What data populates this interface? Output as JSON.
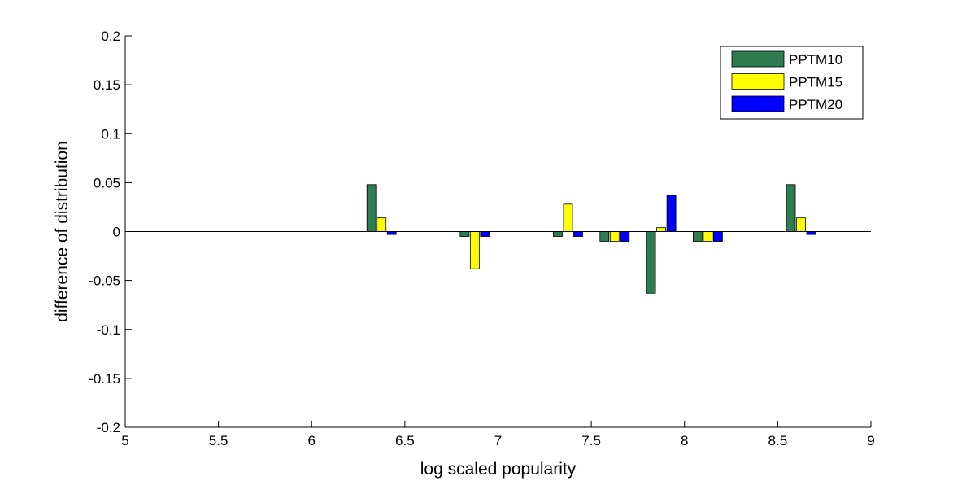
{
  "chart_data": {
    "type": "bar",
    "title": "",
    "xlabel": "log scaled popularity",
    "ylabel": "difference of distribution",
    "xlim": [
      5,
      9
    ],
    "ylim": [
      -0.2,
      0.2
    ],
    "xticks": [
      "5",
      "5.5",
      "6",
      "6.5",
      "7",
      "7.5",
      "8",
      "8.5",
      "9"
    ],
    "xtick_values": [
      5,
      5.5,
      6,
      6.5,
      7,
      7.5,
      8,
      8.5,
      9
    ],
    "yticks": [
      "-0.2",
      "-0.15",
      "-0.1",
      "-0.05",
      "0",
      "0.05",
      "0.1",
      "0.15",
      "0.2"
    ],
    "ytick_values": [
      -0.2,
      -0.15,
      -0.1,
      -0.05,
      0,
      0.05,
      0.1,
      0.15,
      0.2
    ],
    "x": [
      6.375,
      6.875,
      7.375,
      7.625,
      7.875,
      8.125,
      8.625
    ],
    "series": [
      {
        "name": "PPTM10",
        "color": "#2e7d50",
        "values": [
          0.048,
          -0.005,
          -0.005,
          -0.01,
          -0.063,
          -0.01,
          0.048
        ]
      },
      {
        "name": "PPTM15",
        "color": "#ffff00",
        "values": [
          0.014,
          -0.038,
          0.028,
          -0.01,
          0.004,
          -0.01,
          0.014
        ]
      },
      {
        "name": "PPTM20",
        "color": "#0000ff",
        "values": [
          -0.003,
          -0.005,
          -0.005,
          -0.01,
          0.037,
          -0.01,
          -0.003
        ]
      }
    ],
    "legend_position": "top-right",
    "grid": false
  }
}
